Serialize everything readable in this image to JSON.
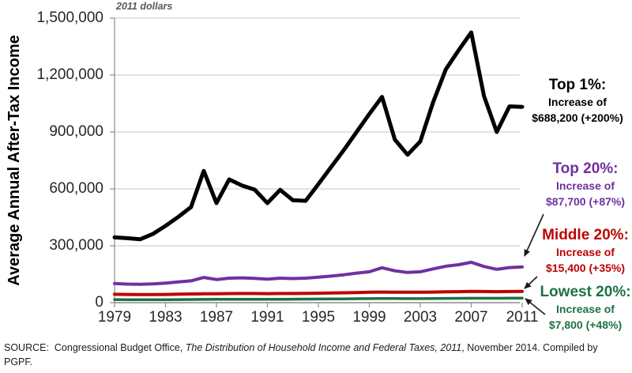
{
  "plot_note": "2011 dollars",
  "y_axis": {
    "title": "Average Annual After-Tax Income",
    "tick_labels": [
      "0",
      "300,000",
      "600,000",
      "900,000",
      "1,200,000",
      "1,500,000"
    ],
    "tick_values": [
      0,
      300000,
      600000,
      900000,
      1200000,
      1500000
    ]
  },
  "x_axis": {
    "tick_labels": [
      "1979",
      "1983",
      "1987",
      "1991",
      "1995",
      "1999",
      "2003",
      "2007",
      "2011"
    ],
    "tick_values": [
      1979,
      1983,
      1987,
      1991,
      1995,
      1999,
      2003,
      2007,
      2011
    ]
  },
  "chart_data": {
    "type": "line",
    "title": "",
    "xlabel": "",
    "ylabel": "Average Annual After-Tax Income",
    "units_note": "2011 dollars",
    "ylim": [
      0,
      1500000
    ],
    "xlim": [
      1979,
      2011
    ],
    "grid": true,
    "legend_position": "right-annotations",
    "years": [
      1979,
      1980,
      1981,
      1982,
      1983,
      1984,
      1985,
      1986,
      1987,
      1988,
      1989,
      1990,
      1991,
      1992,
      1993,
      1994,
      1995,
      1996,
      1997,
      1998,
      1999,
      2000,
      2001,
      2002,
      2003,
      2004,
      2005,
      2006,
      2007,
      2008,
      2009,
      2010,
      2011
    ],
    "series": [
      {
        "name": "Top 1%",
        "color": "#000000",
        "width": 5,
        "values": [
          344100,
          340000,
          334000,
          362000,
          405000,
          452000,
          504000,
          695000,
          525000,
          650000,
          618000,
          596000,
          525000,
          595000,
          540000,
          537000,
          625000,
          715000,
          805000,
          900000,
          995000,
          1085000,
          860000,
          780000,
          850000,
          1055000,
          1230000,
          1330000,
          1425000,
          1090000,
          900000,
          1035000,
          1032300
        ]
      },
      {
        "name": "Top 20%",
        "color": "#7030A0",
        "width": 4,
        "values": [
          100800,
          98000,
          97000,
          99000,
          103000,
          109000,
          115000,
          133000,
          122000,
          129000,
          131000,
          128000,
          124000,
          129000,
          127000,
          129000,
          134000,
          140000,
          147000,
          156000,
          163000,
          184000,
          168000,
          159000,
          163000,
          178000,
          192000,
          200000,
          213000,
          191000,
          176000,
          185000,
          188500
        ]
      },
      {
        "name": "Middle 20%",
        "color": "#C00000",
        "width": 4,
        "values": [
          44000,
          43500,
          43000,
          42800,
          43500,
          45000,
          45800,
          46500,
          47000,
          47800,
          48500,
          48200,
          47500,
          48200,
          48500,
          49200,
          50000,
          50800,
          52000,
          53500,
          54800,
          56000,
          55500,
          55000,
          55200,
          56000,
          57000,
          58000,
          59500,
          58800,
          58000,
          58800,
          59400
        ]
      },
      {
        "name": "Lowest 20%",
        "color": "#1E7145",
        "width": 3.5,
        "values": [
          16300,
          16000,
          15800,
          15500,
          15800,
          16300,
          16800,
          17200,
          17500,
          17800,
          18100,
          18000,
          17800,
          18100,
          18400,
          18800,
          19300,
          19700,
          20200,
          20800,
          21400,
          21900,
          21500,
          21300,
          21400,
          21800,
          22300,
          22800,
          23300,
          23500,
          23400,
          23800,
          24100
        ]
      }
    ]
  },
  "annotations": [
    {
      "title": "Top 1%:",
      "line1": "Increase of",
      "line2": "$688,200 (+200%)",
      "color": "#000000"
    },
    {
      "title": "Top 20%:",
      "line1": "Increase of",
      "line2": "$87,700 (+87%)",
      "color": "#7030A0"
    },
    {
      "title": "Middle 20%:",
      "line1": "Increase of",
      "line2": "$15,400 (+35%)",
      "color": "#C00000"
    },
    {
      "title": "Lowest 20%:",
      "line1": "Increase of",
      "line2": "$7,800 (+48%)",
      "color": "#1E7145"
    }
  ],
  "source": {
    "prefix": "SOURCE:  Congressional Budget Office, ",
    "italic": "The Distribution of Household Income and Federal Taxes, 2011",
    "suffix": ", November 2014. Compiled by",
    "line2": "PGPF."
  },
  "colors": {
    "gridline": "#C6C6C6",
    "axis": "#8C8C8C",
    "arrow": "#1a1a1a"
  }
}
